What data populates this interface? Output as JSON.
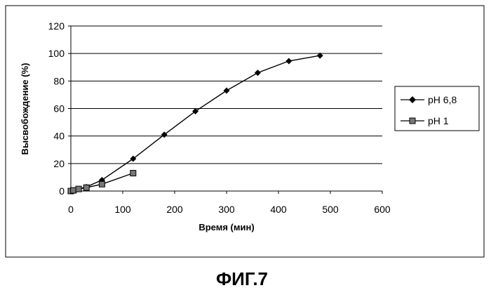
{
  "chart_data": {
    "type": "line",
    "xlabel": "Время (мин)",
    "ylabel": "Высвобождение (%)",
    "xlim": [
      0,
      600
    ],
    "ylim": [
      0,
      120
    ],
    "x_ticks": [
      0,
      100,
      200,
      300,
      400,
      500,
      600
    ],
    "y_ticks": [
      0,
      20,
      40,
      60,
      80,
      100,
      120
    ],
    "grid": "horizontal",
    "legend_position": "right",
    "series": [
      {
        "name": "pH 6,8",
        "marker": "diamond",
        "color": "#000000",
        "x": [
          0,
          5,
          15,
          30,
          60,
          120,
          180,
          240,
          300,
          360,
          420,
          480
        ],
        "y": [
          0,
          0.5,
          1.5,
          3,
          8,
          23.5,
          41,
          58,
          73,
          86,
          94.5,
          98.5
        ]
      },
      {
        "name": "pH 1",
        "marker": "square",
        "color": "#000000",
        "x": [
          0,
          5,
          15,
          30,
          60,
          120
        ],
        "y": [
          0,
          0.5,
          1.5,
          2.5,
          5,
          13
        ]
      }
    ]
  },
  "caption": "ФИГ.7"
}
